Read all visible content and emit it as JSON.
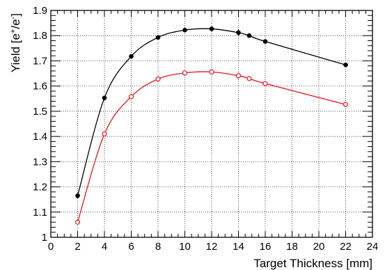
{
  "chart_data": {
    "type": "line",
    "title": "",
    "xlabel": "Target Thickness [mm]",
    "ylabel_parts": {
      "pre": "Yield [e",
      "sup1": "+",
      "mid": "/e",
      "sup2": "-",
      "post": "]"
    },
    "xlim": [
      0,
      24
    ],
    "ylim": [
      1.0,
      1.9
    ],
    "xticks": [
      0,
      2,
      4,
      6,
      8,
      10,
      12,
      14,
      16,
      18,
      20,
      22,
      24
    ],
    "yticks": [
      1,
      1.1,
      1.2,
      1.3,
      1.4,
      1.5,
      1.6,
      1.7,
      1.8,
      1.9
    ],
    "ytick_labels": [
      "1",
      "1.1",
      "1.2",
      "1.3",
      "1.4",
      "1.5",
      "1.6",
      "1.7",
      "1.8",
      "1.9"
    ],
    "grid": true,
    "legend": "none",
    "series": [
      {
        "color": "#000000",
        "marker": "filled-circle",
        "x": [
          2,
          4,
          6,
          8,
          10,
          12,
          14,
          14.8,
          16,
          22
        ],
        "y": [
          1.165,
          1.553,
          1.718,
          1.793,
          1.822,
          1.827,
          1.812,
          1.8,
          1.777,
          1.684
        ],
        "err": [
          0.01,
          0.005,
          0.005,
          0.007,
          0.005,
          0.01,
          0.012,
          0.008,
          0.008,
          0.004
        ]
      },
      {
        "color": "#e8141a",
        "marker": "open-circle",
        "x": [
          2,
          4,
          6,
          8,
          10,
          12,
          14,
          14.8,
          16,
          22
        ],
        "y": [
          1.06,
          1.41,
          1.558,
          1.628,
          1.652,
          1.656,
          1.641,
          1.63,
          1.61,
          1.527
        ],
        "err": [
          0.005,
          0.005,
          0.005,
          0.005,
          0.005,
          0.01,
          0.012,
          0.008,
          0.008,
          0.004
        ]
      }
    ]
  }
}
